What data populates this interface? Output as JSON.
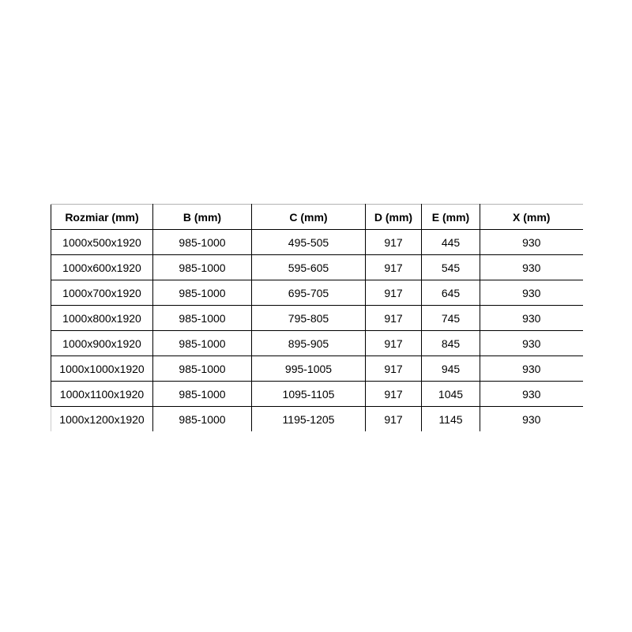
{
  "table": {
    "headers": {
      "rozmiar": "Rozmiar (mm)",
      "b": "B (mm)",
      "c": "C (mm)",
      "d": "D (mm)",
      "e": "E (mm)",
      "x": "X (mm)"
    },
    "rows": [
      [
        "1000x500x1920",
        "985-1000",
        "495-505",
        "917",
        "445",
        "930"
      ],
      [
        "1000x600x1920",
        "985-1000",
        "595-605",
        "917",
        "545",
        "930"
      ],
      [
        "1000x700x1920",
        "985-1000",
        "695-705",
        "917",
        "645",
        "930"
      ],
      [
        "1000x800x1920",
        "985-1000",
        "795-805",
        "917",
        "745",
        "930"
      ],
      [
        "1000x900x1920",
        "985-1000",
        "895-905",
        "917",
        "845",
        "930"
      ],
      [
        "1000x1000x1920",
        "985-1000",
        "995-1005",
        "917",
        "945",
        "930"
      ],
      [
        "1000x1100x1920",
        "985-1000",
        "1095-1105",
        "917",
        "1045",
        "930"
      ],
      [
        "1000x1200x1920",
        "985-1000",
        "1195-1205",
        "917",
        "1145",
        "930"
      ]
    ],
    "colors": {
      "border": "#000000",
      "top_border": "#b3b3b3",
      "text": "#000000",
      "background": "#ffffff"
    }
  }
}
